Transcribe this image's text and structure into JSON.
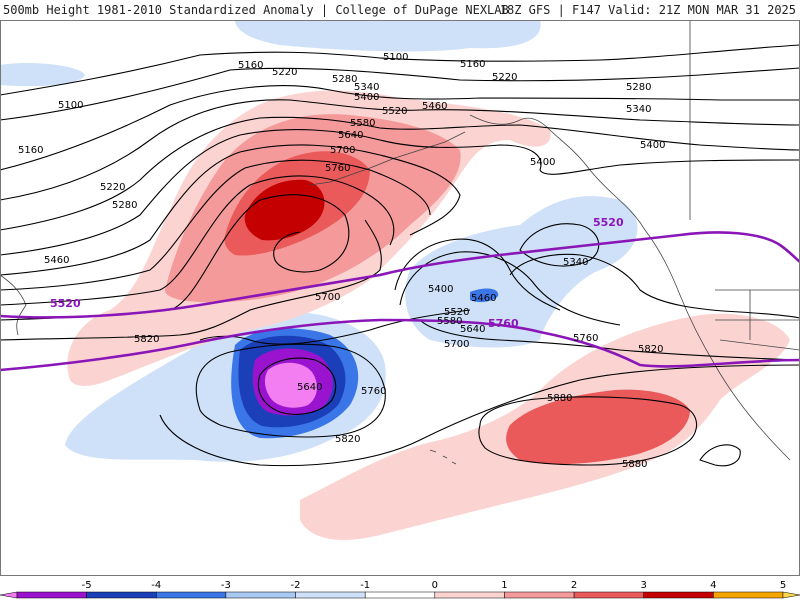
{
  "header": {
    "title": "500mb Height 1981-2010 Standardized Anomaly | College of DuPage NEXLAB",
    "run": "18Z GFS | F147 Valid: 21Z MON MAR 31 2025"
  },
  "colorbar": {
    "ticks": [
      "-5",
      "-4",
      "-3",
      "-2",
      "-1",
      "0",
      "1",
      "2",
      "3",
      "4",
      "5"
    ],
    "colors": [
      "#f27ef2",
      "#9a14d0",
      "#1b3fb8",
      "#3a76e8",
      "#a9c8f2",
      "#cfe1f8",
      "#ffffff",
      "#fbd4d2",
      "#f59a9a",
      "#ea5a5a",
      "#c40000",
      "#f5a500",
      "#ffd94a"
    ]
  },
  "contours": {
    "labels": [
      "5100",
      "5160",
      "5220",
      "5280",
      "5340",
      "5400",
      "5460",
      "5520",
      "5580",
      "5640",
      "5700",
      "5760",
      "5820",
      "5880"
    ],
    "highlight_labels": [
      "5520",
      "5760"
    ]
  }
}
